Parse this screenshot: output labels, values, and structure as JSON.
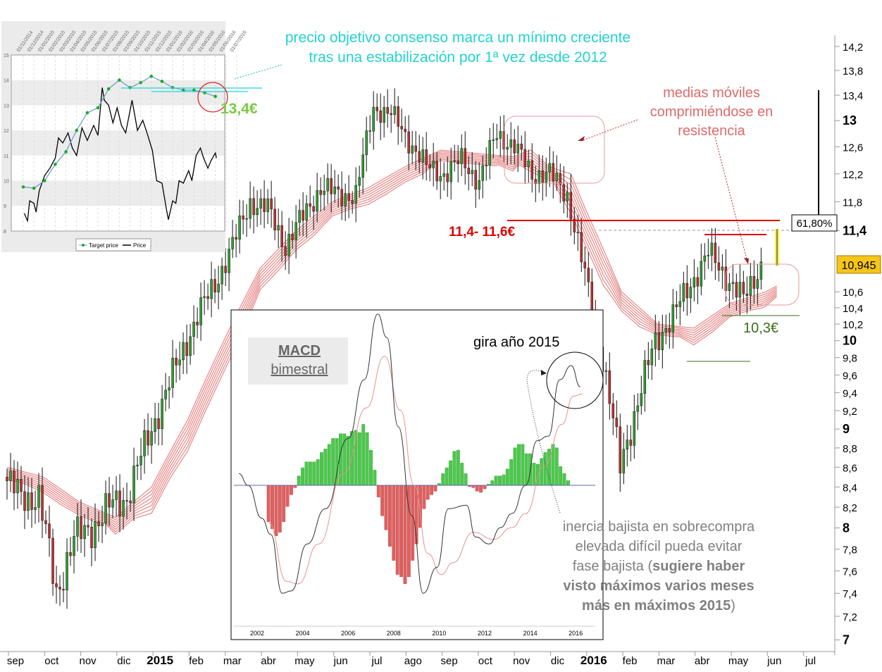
{
  "chart_data": [
    {
      "type": "candlestick",
      "scale": "log",
      "ylim": [
        7,
        14.2
      ],
      "y_ticks": [
        "14,2",
        "13,8",
        "13,4",
        "13",
        "12,6",
        "12,2",
        "11,8",
        "11,4",
        "10,6",
        "10,4",
        "10,2",
        "10",
        "9,8",
        "9,6",
        "9,4",
        "9,2",
        "9",
        "8,8",
        "8,6",
        "8,4",
        "8,2",
        "8",
        "7,8",
        "7,6",
        "7,4",
        "7,2",
        "7"
      ],
      "y_tick_values": [
        14.2,
        13.8,
        13.4,
        13,
        12.6,
        12.2,
        11.8,
        11.4,
        10.6,
        10.4,
        10.2,
        10,
        9.8,
        9.6,
        9.4,
        9.2,
        9,
        8.8,
        8.6,
        8.4,
        8.2,
        8,
        7.8,
        7.6,
        7.4,
        7.2,
        7
      ],
      "y_bold": [
        "13",
        "11,4",
        "10",
        "9",
        "8",
        "7"
      ],
      "x_ticks": [
        "sep",
        "oct",
        "nov",
        "dic",
        "2015",
        "feb",
        "mar",
        "abr",
        "may",
        "jun",
        "jul",
        "ago",
        "sep",
        "oct",
        "nov",
        "dic",
        "2016",
        "feb",
        "mar",
        "abr",
        "may",
        "jun",
        "jul"
      ],
      "x_bold": [
        "2015",
        "2016"
      ],
      "price_half_month_from_sep_2014": [
        8.5,
        8.3,
        8.3,
        7.4,
        7.9,
        8.0,
        8.2,
        8.3,
        8.8,
        9.3,
        9.8,
        10.3,
        10.7,
        11.2,
        11.8,
        11.7,
        11.2,
        11.6,
        12.0,
        11.9,
        11.9,
        13.2,
        13.1,
        12.7,
        12.3,
        12.2,
        12.4,
        12.1,
        12.8,
        12.6,
        12.2,
        12.2,
        11.9,
        10.8,
        9.8,
        8.6,
        9.3,
        10.0,
        10.3,
        10.7,
        11.1,
        10.8,
        10.5,
        10.95
      ],
      "moving_average_ribbon": [
        [
          0,
          8.6
        ],
        [
          1,
          8.5
        ],
        [
          2,
          8.25
        ],
        [
          3,
          8.1
        ],
        [
          4,
          8.4
        ],
        [
          5,
          9.1
        ],
        [
          6,
          10.0
        ],
        [
          7,
          10.9
        ],
        [
          8,
          11.4
        ],
        [
          9,
          11.8
        ],
        [
          10,
          12.0
        ],
        [
          11,
          12.3
        ],
        [
          12,
          12.55
        ],
        [
          13,
          12.5
        ],
        [
          14,
          12.45
        ],
        [
          14.5,
          12.55
        ],
        [
          15,
          12.3
        ],
        [
          15.6,
          12.2
        ],
        [
          16,
          11.7
        ],
        [
          17,
          10.6
        ],
        [
          18,
          10.2
        ],
        [
          19,
          10.15
        ],
        [
          20,
          10.45
        ],
        [
          21,
          10.6
        ],
        [
          21.4,
          10.7
        ]
      ],
      "last_price_label": "10,945",
      "fib_label": "61,80%",
      "annotations": {
        "resistance": "11,4- 11,6€",
        "support": "10,3€",
        "ma_note": [
          "medias móviles",
          "comprimiéndose en",
          "resistencia"
        ],
        "consensus_note": [
          "precio objetivo consenso marca un mínimo creciente",
          "tras una estabilización por 1ª vez desde 2012"
        ],
        "target_label": "13,4€"
      },
      "colors": {
        "up": "#2e9e2e",
        "down": "#c03030",
        "ma": "#e07070",
        "resistance": "#e00000",
        "note": "#e06a6a",
        "cyan": "#22d3d3",
        "support_text": "#3a6d1a",
        "target": "#7ac943",
        "last_bg": "#f5c518"
      }
    },
    {
      "type": "line",
      "legend": [
        "Target price",
        "Price"
      ],
      "x_ticks": [
        "01/11/2014",
        "01/12/2014",
        "01/01/2015",
        "01/02/2015",
        "01/03/2015",
        "01/04/2015",
        "01/05/2015",
        "01/06/2015",
        "01/07/2015",
        "01/08/2015",
        "01/09/2015",
        "01/10/2015",
        "01/11/2015",
        "01/12/2015",
        "01/01/2016",
        "01/02/2016",
        "01/03/2016",
        "01/04/2016",
        "01/05/2016",
        "01/06/2016",
        "01/07/2016"
      ],
      "y_ticks": [
        15,
        14,
        13,
        12,
        11,
        10,
        9,
        8
      ],
      "ylim": [
        8,
        15
      ],
      "target_price": [
        9.75,
        9.7,
        10.0,
        10.65,
        11.15,
        12.0,
        12.7,
        12.9,
        13.65,
        14.0,
        13.7,
        13.9,
        14.15,
        13.95,
        13.7,
        13.6,
        13.6,
        13.5,
        13.35
      ],
      "price_by_month": [
        [
          0.1,
          8.7
        ],
        [
          0.4,
          8.4
        ],
        [
          0.6,
          9.2
        ],
        [
          1,
          9.1
        ],
        [
          1.2,
          8.75
        ],
        [
          1.5,
          9.6
        ],
        [
          2,
          10.2
        ],
        [
          2.5,
          10.5
        ],
        [
          3,
          10.9
        ],
        [
          3.3,
          11.7
        ],
        [
          3.7,
          11.5
        ],
        [
          4.2,
          11.9
        ],
        [
          4.6,
          11.3
        ],
        [
          5,
          11.0
        ],
        [
          5.5,
          12.1
        ],
        [
          6,
          11.6
        ],
        [
          6.6,
          12.2
        ],
        [
          7,
          11.8
        ],
        [
          7.4,
          13.7
        ],
        [
          7.6,
          13.2
        ],
        [
          8,
          13.0
        ],
        [
          8.4,
          12.3
        ],
        [
          8.8,
          12.9
        ],
        [
          9.2,
          12.2
        ],
        [
          9.6,
          11.9
        ],
        [
          10.2,
          13.2
        ],
        [
          10.7,
          12.0
        ],
        [
          11.2,
          12.4
        ],
        [
          11.6,
          11.9
        ],
        [
          12.1,
          11.2
        ],
        [
          12.5,
          10.0
        ],
        [
          13,
          9.9
        ],
        [
          13.4,
          8.9
        ],
        [
          13.6,
          8.45
        ],
        [
          14,
          9.2
        ],
        [
          14.3,
          9.1
        ],
        [
          14.6,
          10.0
        ],
        [
          15,
          9.9
        ],
        [
          15.5,
          10.4
        ],
        [
          15.8,
          10.0
        ],
        [
          16.2,
          11.0
        ],
        [
          16.6,
          11.3
        ],
        [
          16.9,
          10.9
        ],
        [
          17.3,
          10.5
        ],
        [
          17.6,
          10.8
        ],
        [
          18,
          11.1
        ],
        [
          18.1,
          10.9
        ]
      ]
    },
    {
      "type": "bar+line",
      "title": "MACD",
      "subtitle": "bimestral",
      "x_ticks": [
        "2002",
        "2004",
        "2006",
        "2008",
        "2010",
        "2012",
        "2014",
        "2016"
      ],
      "histogram_start_year": 2002.5,
      "histogram": [
        -1.55,
        -1.85,
        -2.15,
        -2.0,
        -1.55,
        -0.9,
        -0.4,
        -0.1,
        0.4,
        0.75,
        1.0,
        1.0,
        1.0,
        1.1,
        1.4,
        1.55,
        1.75,
        2.0,
        2.0,
        2.2,
        2.2,
        2.1,
        2.3,
        2.35,
        2.25,
        2.6,
        2.25,
        1.5,
        0.65,
        -0.5,
        -1.3,
        -1.9,
        -2.6,
        -3.2,
        -3.8,
        -3.9,
        -4.2,
        -3.9,
        -3.2,
        -2.5,
        -1.8,
        -1.0,
        -0.6,
        -0.4,
        -0.25,
        0.08,
        0.5,
        0.75,
        1.05,
        1.45,
        1.5,
        0.95,
        0.5,
        -0.05,
        -0.1,
        -0.25,
        -0.3,
        -0.15,
        0.05,
        0.2,
        0.4,
        0.4,
        0.45,
        0.7,
        1.1,
        1.6,
        1.75,
        1.75,
        1.35,
        1.35,
        0.95,
        0.9,
        1.15,
        1.4,
        1.55,
        1.75,
        1.6,
        0.8,
        0.5,
        0.2
      ],
      "macd": [
        [
          2001.2,
          0.5
        ],
        [
          2001.6,
          0
        ],
        [
          2002.2,
          -1.4
        ],
        [
          2002.6,
          -2.1
        ],
        [
          2003.1,
          -4.6
        ],
        [
          2003.5,
          -4.5
        ],
        [
          2004.2,
          -2.5
        ],
        [
          2005,
          -1.0
        ],
        [
          2006,
          2.0
        ],
        [
          2006.7,
          4.5
        ],
        [
          2007.3,
          7.3
        ],
        [
          2007.7,
          6.3
        ],
        [
          2008.2,
          2.5
        ],
        [
          2008.8,
          -1.3
        ],
        [
          2009.3,
          -4.6
        ],
        [
          2009.9,
          -3.5
        ],
        [
          2010.4,
          -1.0
        ],
        [
          2011.2,
          -0.85
        ],
        [
          2011.6,
          -2.2
        ],
        [
          2012.2,
          -2.5
        ],
        [
          2012.7,
          -1.8
        ],
        [
          2013.2,
          -1.2
        ],
        [
          2013.8,
          0.0
        ],
        [
          2014.3,
          1.9
        ],
        [
          2014.8,
          2.1
        ],
        [
          2015.3,
          4.5
        ],
        [
          2015.8,
          5.1
        ],
        [
          2016.2,
          4.2
        ]
      ],
      "signal": [
        [
          2002.5,
          -1.6
        ],
        [
          2003.3,
          -4.1
        ],
        [
          2003.8,
          -4.2
        ],
        [
          2004.7,
          -2.5
        ],
        [
          2005.8,
          0.5
        ],
        [
          2006.8,
          3.3
        ],
        [
          2007.6,
          5.5
        ],
        [
          2008.3,
          3.2
        ],
        [
          2008.9,
          0.0
        ],
        [
          2009.5,
          -2.9
        ],
        [
          2010.1,
          -3.8
        ],
        [
          2010.6,
          -3.3
        ],
        [
          2011.5,
          -2.0
        ],
        [
          2012.4,
          -2.3
        ],
        [
          2013.2,
          -1.8
        ],
        [
          2013.8,
          -1.2
        ],
        [
          2014.6,
          0.8
        ],
        [
          2015.4,
          2.6
        ],
        [
          2015.9,
          3.8
        ],
        [
          2016.3,
          3.9
        ]
      ],
      "annotations": {
        "turn": "gira año 2015",
        "note_lines": [
          "inercia bajista en sobrecompra",
          "elevada difícil pueda evitar",
          "fase bajista (",
          "sugiere haber",
          "visto máximos varios meses",
          "más en máximos 2015",
          ")"
        ]
      },
      "colors": {
        "pos": "#4cc94c",
        "neg": "#e06060",
        "macd": "#333333",
        "signal": "#e89090",
        "zero": "#6666aa"
      }
    }
  ]
}
